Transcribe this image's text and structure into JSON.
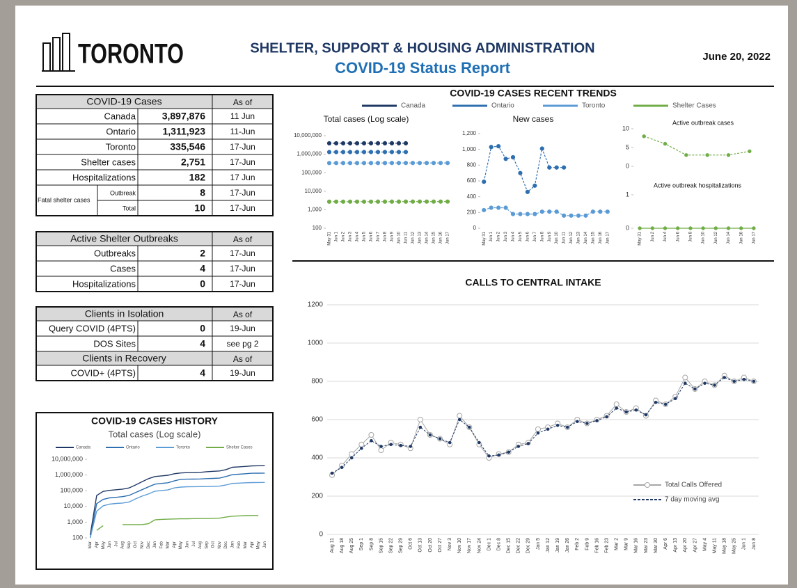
{
  "header": {
    "logo": "TORONTO",
    "title": "SHELTER, SUPPORT & HOUSING ADMINISTRATION",
    "subtitle": "COVID-19 Status Report",
    "date": "June 20, 2022"
  },
  "tables": [
    {
      "sections": [
        {
          "header": [
            "COVID-19 Cases",
            "As of"
          ],
          "rows": [
            [
              "Canada",
              "3,897,876",
              "11 Jun"
            ],
            [
              "Ontario",
              "1,311,923",
              "11-Jun"
            ],
            [
              "Toronto",
              "335,546",
              "17-Jun"
            ],
            [
              "Shelter cases",
              "2,751",
              "17-Jun"
            ],
            [
              "Hospitalizations",
              "182",
              "17 Jun"
            ]
          ]
        }
      ],
      "fatal": {
        "label": "Fatal shelter cases",
        "rows": [
          [
            "Outbreak",
            "8",
            "17-Jun"
          ],
          [
            "Total",
            "10",
            "17-Jun"
          ]
        ]
      }
    },
    {
      "sections": [
        {
          "header": [
            "Active Shelter Outbreaks",
            "As of"
          ],
          "rows": [
            [
              "Outbreaks",
              "2",
              "17-Jun"
            ],
            [
              "Cases",
              "4",
              "17-Jun"
            ],
            [
              "Hospitalizations",
              "0",
              "17-Jun"
            ]
          ]
        }
      ]
    },
    {
      "sections": [
        {
          "header": [
            "Clients in Isolation",
            "As of"
          ],
          "rows": [
            [
              "Query COVID (4PTS)",
              "0",
              "19-Jun"
            ],
            [
              "DOS Sites",
              "4",
              "see pg 2"
            ]
          ]
        },
        {
          "header": [
            "Clients in Recovery",
            "As of"
          ],
          "rows": [
            [
              "COVID+ (4PTS)",
              "4",
              "19-Jun"
            ]
          ]
        }
      ]
    }
  ],
  "chart_data": [
    {
      "type": "line",
      "section_title": "COVID-19 CASES RECENT TRENDS",
      "title": "Total cases (Log scale)",
      "log_scale": true,
      "grid": false,
      "categories": [
        "May 31",
        "Jun 1",
        "Jun 2",
        "Jun 3",
        "Jun 4",
        "Jun 5",
        "Jun 6",
        "Jun 7",
        "Jun 8",
        "Jun 9",
        "Jun 10",
        "Jun 11",
        "Jun 12",
        "Jun 13",
        "Jun 14",
        "Jun 15",
        "Jun 16",
        "Jun 17"
      ],
      "ylim": [
        100,
        10000000
      ],
      "yticks": [
        100,
        {
          "value": 1000,
          "label": "1,000"
        },
        {
          "value": 10000,
          "label": "10,000"
        },
        {
          "value": 100000,
          "label": "100,000"
        },
        {
          "value": 1000000,
          "label": "1,000,000"
        },
        {
          "value": 10000000,
          "label": "10,000,000"
        }
      ],
      "series": [
        {
          "name": "Canada",
          "color": "#1f3864",
          "marker": true,
          "dash": true,
          "values": [
            3880000,
            3881500,
            3883000,
            3884500,
            3886000,
            3887500,
            3889000,
            3890500,
            3892000,
            3893500,
            3895000,
            3897876,
            null,
            null,
            null,
            null,
            null,
            null
          ]
        },
        {
          "name": "Ontario",
          "color": "#2e6fb0",
          "marker": true,
          "dash": true,
          "values": [
            1305000,
            1305600,
            1306200,
            1306800,
            1307400,
            1308000,
            1308600,
            1309200,
            1309800,
            1310400,
            1311000,
            1311923,
            null,
            null,
            null,
            null,
            null,
            null
          ]
        },
        {
          "name": "Toronto",
          "color": "#5b9bd5",
          "marker": true,
          "dash": true,
          "values": [
            333400,
            333550,
            333700,
            333850,
            334000,
            334150,
            334300,
            334450,
            334600,
            334750,
            334900,
            335000,
            335100,
            335200,
            335300,
            335400,
            335500,
            335546
          ]
        },
        {
          "name": "Shelter Cases",
          "color": "#70ad47",
          "marker": true,
          "dash": true,
          "values": [
            2720,
            2722,
            2724,
            2726,
            2728,
            2730,
            2732,
            2734,
            2736,
            2738,
            2740,
            2742,
            2744,
            2746,
            2748,
            2749,
            2750,
            2751
          ]
        }
      ]
    },
    {
      "type": "line",
      "title": "New cases",
      "grid": false,
      "categories": [
        "May 31",
        "Jun 1",
        "Jun 2",
        "Jun 3",
        "Jun 4",
        "Jun 5",
        "Jun 6",
        "Jun 7",
        "Jun 8",
        "Jun 9",
        "Jun 10",
        "Jun 11",
        "Jun 12",
        "Jun 13",
        "Jun 14",
        "Jun 15",
        "Jun 16",
        "Jun 17"
      ],
      "ylim": [
        0,
        1200
      ],
      "yticks": [
        0,
        200,
        400,
        600,
        800,
        {
          "value": 1000,
          "label": "1,000"
        },
        {
          "value": 1200,
          "label": "1,200"
        }
      ],
      "series": [
        {
          "color": "#2e6fb0",
          "marker": true,
          "dash": true,
          "values": [
            590,
            1030,
            1040,
            880,
            900,
            700,
            460,
            540,
            1010,
            770,
            770,
            770,
            null,
            null,
            null,
            null,
            null,
            null
          ]
        },
        {
          "color": "#5b9bd5",
          "marker": true,
          "dash": true,
          "values": [
            230,
            260,
            260,
            260,
            180,
            180,
            180,
            180,
            210,
            210,
            210,
            160,
            160,
            160,
            160,
            210,
            210,
            210
          ]
        }
      ]
    },
    {
      "type": "line",
      "title": "Active outbreak cases",
      "grid": false,
      "ylim": [
        0,
        10
      ],
      "yticks": [
        0,
        5,
        10
      ],
      "series": [
        {
          "color": "#70ad47",
          "marker": true,
          "dash": true,
          "values": [
            8,
            6,
            3,
            3,
            3,
            4
          ]
        }
      ]
    },
    {
      "type": "line",
      "title": "Active outbreak hospitalizations",
      "grid": false,
      "ylim": [
        0,
        1
      ],
      "yticks": [
        0,
        1
      ],
      "categories": [
        "May 31",
        "Jun 2",
        "Jun 4",
        "Jun 6",
        "Jun 8",
        "Jun 10",
        "Jun 12",
        "Jun 14",
        "Jun 16",
        "Jun 17"
      ],
      "series": [
        {
          "color": "#70ad47",
          "marker": true,
          "dash": false,
          "values": [
            0,
            0,
            0,
            0,
            0,
            0,
            0,
            0,
            0,
            0
          ]
        }
      ]
    },
    {
      "type": "line",
      "title": "CALLS TO CENTRAL INTAKE",
      "grid": true,
      "ylim": [
        0,
        1200
      ],
      "yticks": [
        0,
        200,
        400,
        600,
        800,
        1000,
        1200
      ],
      "categories": [
        "Aug 11",
        "Aug 18",
        "Aug 25",
        "Sep 1",
        "Sep 8",
        "Sep 15",
        "Sep 22",
        "Sep 29",
        "Oct 6",
        "Oct 13",
        "Oct 20",
        "Oct 27",
        "Nov 3",
        "Nov 10",
        "Nov 17",
        "Nov 24",
        "Dec 1",
        "Dec 8",
        "Dec 15",
        "Dec 22",
        "Dec 29",
        "Jan 5",
        "Jan 12",
        "Jan 19",
        "Jan 26",
        "Feb 2",
        "Feb 9",
        "Feb 16",
        "Feb 23",
        "Mar 2",
        "Mar 9",
        "Mar 16",
        "Mar 23",
        "Mar 30",
        "Apr 6",
        "Apr 13",
        "Apr 20",
        "Apr 27",
        "May 4",
        "May 11",
        "May 18",
        "May 25",
        "Jun 1",
        "Jun 8"
      ],
      "series": [
        {
          "name": "Total Calls Offered",
          "color": "#a6a6a6",
          "marker": "hollow",
          "dash": false,
          "values": [
            310,
            360,
            420,
            470,
            520,
            440,
            480,
            470,
            450,
            600,
            520,
            500,
            470,
            620,
            560,
            470,
            400,
            420,
            430,
            470,
            480,
            550,
            560,
            580,
            560,
            600,
            580,
            600,
            620,
            680,
            640,
            660,
            620,
            700,
            680,
            720,
            820,
            760,
            800,
            780,
            830,
            800,
            820,
            800
          ]
        },
        {
          "name": "7 day moving avg",
          "color": "#1f3864",
          "marker": true,
          "dash": true,
          "values": [
            320,
            350,
            400,
            450,
            490,
            460,
            470,
            465,
            460,
            560,
            520,
            500,
            480,
            600,
            560,
            480,
            410,
            415,
            430,
            460,
            475,
            530,
            550,
            570,
            560,
            590,
            580,
            595,
            615,
            660,
            640,
            650,
            625,
            690,
            680,
            710,
            790,
            760,
            790,
            780,
            820,
            800,
            810,
            800
          ]
        }
      ]
    },
    {
      "type": "line",
      "title": "COVID-19 CASES HISTORY",
      "subtitle": "Total cases (Log scale)",
      "log_scale": true,
      "grid": false,
      "categories": [
        "Mar",
        "Apr",
        "May",
        "Jun",
        "Jul",
        "Aug",
        "Sep",
        "Oct",
        "Nov",
        "Dec",
        "Jan",
        "Feb",
        "Mar",
        "Apr",
        "May",
        "Jun",
        "Jul",
        "Aug",
        "Sep",
        "Oct",
        "Nov",
        "Dec",
        "Jan",
        "Feb",
        "Mar",
        "Apr",
        "May",
        "Jun"
      ],
      "ylim": [
        100,
        10000000
      ],
      "yticks": [
        100,
        {
          "value": 1000,
          "label": "1,000"
        },
        {
          "value": 10000,
          "label": "10,000"
        },
        {
          "value": 100000,
          "label": "100,000"
        },
        {
          "value": 1000000,
          "label": "1,000,000"
        },
        {
          "value": 10000000,
          "label": "10,000,000"
        }
      ],
      "series": [
        {
          "name": "Canada",
          "color": "#1f3864",
          "values": [
            150,
            50000,
            90000,
            105000,
            115000,
            127000,
            150000,
            230000,
            370000,
            580000,
            800000,
            880000,
            960000,
            1200000,
            1350000,
            1410000,
            1420000,
            1480000,
            1610000,
            1720000,
            1800000,
            2200000,
            3100000,
            3300000,
            3500000,
            3800000,
            3880000,
            3897876
          ]
        },
        {
          "name": "Ontario",
          "color": "#2e6fb0",
          "values": [
            100,
            15000,
            28000,
            35000,
            38000,
            42000,
            50000,
            76000,
            115000,
            175000,
            260000,
            290000,
            320000,
            420000,
            530000,
            545000,
            548000,
            560000,
            590000,
            610000,
            630000,
            800000,
            1050000,
            1120000,
            1200000,
            1290000,
            1305000,
            1311923
          ]
        },
        {
          "name": "Toronto",
          "color": "#5b9bd5",
          "values": [
            100,
            5000,
            11000,
            14000,
            15500,
            16500,
            19000,
            30000,
            45000,
            62000,
            93000,
            103000,
            112000,
            150000,
            170000,
            178000,
            180000,
            182000,
            185000,
            190000,
            195000,
            230000,
            290000,
            305000,
            318000,
            330000,
            334000,
            335546
          ]
        },
        {
          "name": "Shelter Cases",
          "color": "#70ad47",
          "values": [
            null,
            300,
            600,
            null,
            null,
            700,
            700,
            700,
            700,
            800,
            1400,
            1500,
            1550,
            1600,
            1650,
            1650,
            1680,
            1700,
            1700,
            1750,
            1800,
            2100,
            2400,
            2500,
            2600,
            2650,
            2700,
            null
          ]
        }
      ]
    }
  ]
}
